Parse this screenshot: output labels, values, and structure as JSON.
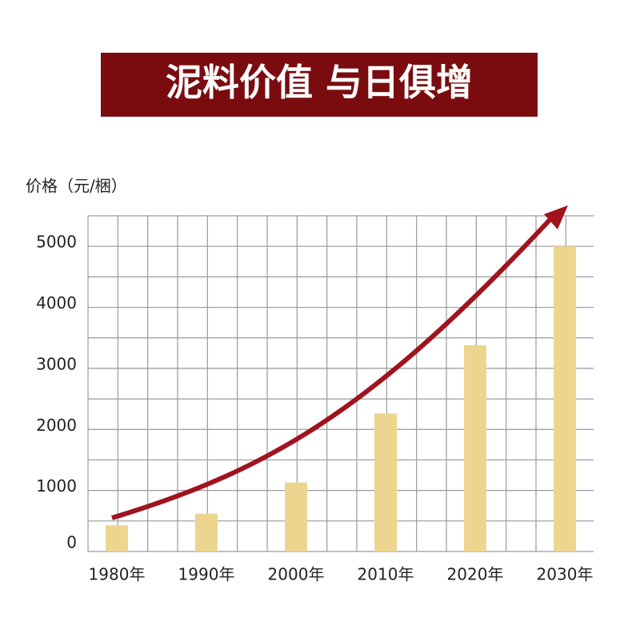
{
  "chart_data": {
    "type": "bar",
    "title": "泥料价值 与日俱增",
    "y_label": "价格（元/梱）",
    "categories": [
      "1980年",
      "1990年",
      "2000年",
      "2010年",
      "2020年",
      "2030年"
    ],
    "values": [
      430,
      620,
      1130,
      2260,
      3380,
      5000
    ],
    "color": "#ecd68f",
    "ylim": [
      0,
      5500
    ],
    "yticks": [
      0,
      1000,
      2000,
      3000,
      4000,
      5000
    ],
    "minor_yticks": [
      500,
      1500,
      2500,
      3500,
      4500,
      5500
    ],
    "grid": true
  }
}
